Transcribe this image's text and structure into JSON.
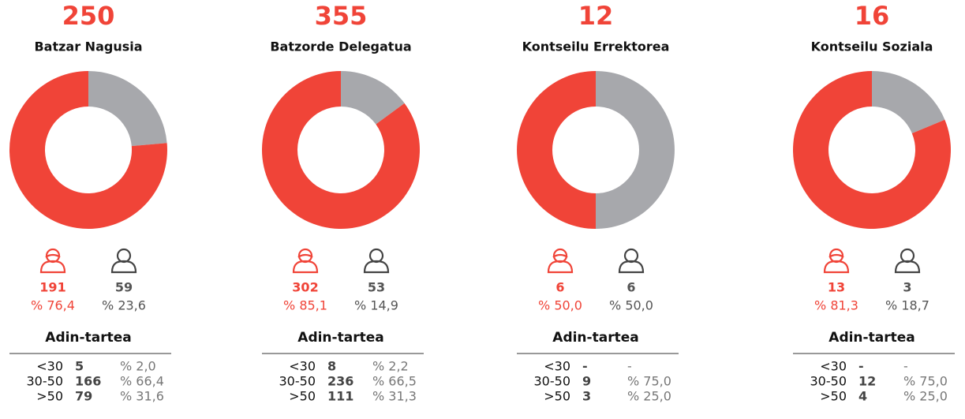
{
  "chart_data": [
    {
      "type": "donut",
      "total": 250,
      "title": "Batzar Nagusia",
      "values": [
        191,
        59
      ],
      "percent_labels": [
        "% 76,4",
        "% 23,6"
      ],
      "colors": [
        "#f04438",
        "#a7a8ac"
      ],
      "age": {
        "title": "Adin-tartea",
        "rows": [
          [
            "<30",
            "5",
            "% 2,0"
          ],
          [
            "30-50",
            "166",
            "% 66,4"
          ],
          [
            ">50",
            "79",
            "% 31,6"
          ]
        ]
      }
    },
    {
      "type": "donut",
      "total": 355,
      "title": "Batzorde Delegatua",
      "values": [
        302,
        53
      ],
      "percent_labels": [
        "% 85,1",
        "% 14,9"
      ],
      "colors": [
        "#f04438",
        "#a7a8ac"
      ],
      "age": {
        "title": "Adin-tartea",
        "rows": [
          [
            "<30",
            "8",
            "% 2,2"
          ],
          [
            "30-50",
            "236",
            "% 66,5"
          ],
          [
            ">50",
            "111",
            "% 31,3"
          ]
        ]
      }
    },
    {
      "type": "donut",
      "total": 12,
      "title": "Kontseilu Errektorea",
      "values": [
        6,
        6
      ],
      "percent_labels": [
        "% 50,0",
        "% 50,0"
      ],
      "colors": [
        "#f04438",
        "#a7a8ac"
      ],
      "age": {
        "title": "Adin-tartea",
        "rows": [
          [
            "<30",
            "-",
            "-"
          ],
          [
            "30-50",
            "9",
            "% 75,0"
          ],
          [
            ">50",
            "3",
            "% 25,0"
          ]
        ]
      }
    },
    {
      "type": "donut",
      "total": 16,
      "title": "Kontseilu Soziala",
      "values": [
        13,
        3
      ],
      "percent_labels": [
        "% 81,3",
        "% 18,7"
      ],
      "colors": [
        "#f04438",
        "#a7a8ac"
      ],
      "age": {
        "title": "Adin-tartea",
        "rows": [
          [
            "<30",
            "-",
            "-"
          ],
          [
            "30-50",
            "12",
            "% 75,0"
          ],
          [
            ">50",
            "4",
            "% 25,0"
          ]
        ]
      }
    }
  ]
}
